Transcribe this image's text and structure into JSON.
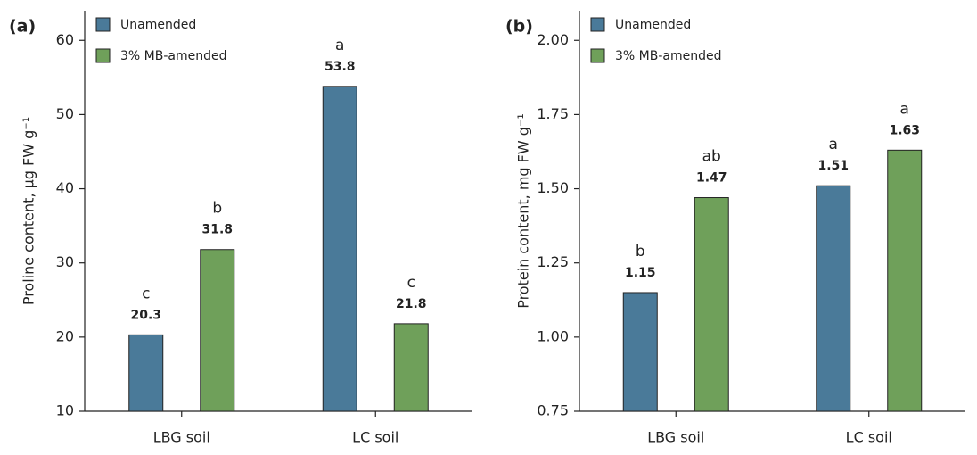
{
  "chart_data": [
    {
      "type": "bar",
      "panel_label": "(a)",
      "ylabel": "Proline content, µg FW g⁻¹",
      "categories": [
        "LBG soil",
        "LC soil"
      ],
      "series": [
        {
          "name": "Unamended",
          "color": "#4a7a99",
          "values": [
            20.3,
            53.8
          ],
          "letters": [
            "c",
            "a"
          ]
        },
        {
          "name": "3% MB-amended",
          "color": "#6fa05a",
          "values": [
            31.8,
            21.8
          ],
          "letters": [
            "b",
            "c"
          ]
        }
      ],
      "ylim": [
        10,
        64
      ],
      "yticks": [
        10,
        20,
        30,
        40,
        50,
        60
      ],
      "legend": "upper left"
    },
    {
      "type": "bar",
      "panel_label": "(b)",
      "ylabel": "Protein content, mg FW g⁻¹",
      "categories": [
        "LBG soil",
        "LC soil"
      ],
      "series": [
        {
          "name": "Unamended",
          "color": "#4a7a99",
          "values": [
            1.15,
            1.51
          ],
          "letters": [
            "b",
            "a"
          ]
        },
        {
          "name": "3% MB-amended",
          "color": "#6fa05a",
          "values": [
            1.47,
            1.63
          ],
          "letters": [
            "ab",
            "a"
          ]
        }
      ],
      "ylim": [
        0.75,
        2.1
      ],
      "yticks": [
        0.75,
        {
          "value": 1,
          "label": "1.00"
        },
        1.25,
        {
          "value": 1.5,
          "label": "1.50"
        },
        1.75,
        {
          "value": 2,
          "label": "2.00"
        }
      ],
      "legend": "upper left"
    }
  ]
}
